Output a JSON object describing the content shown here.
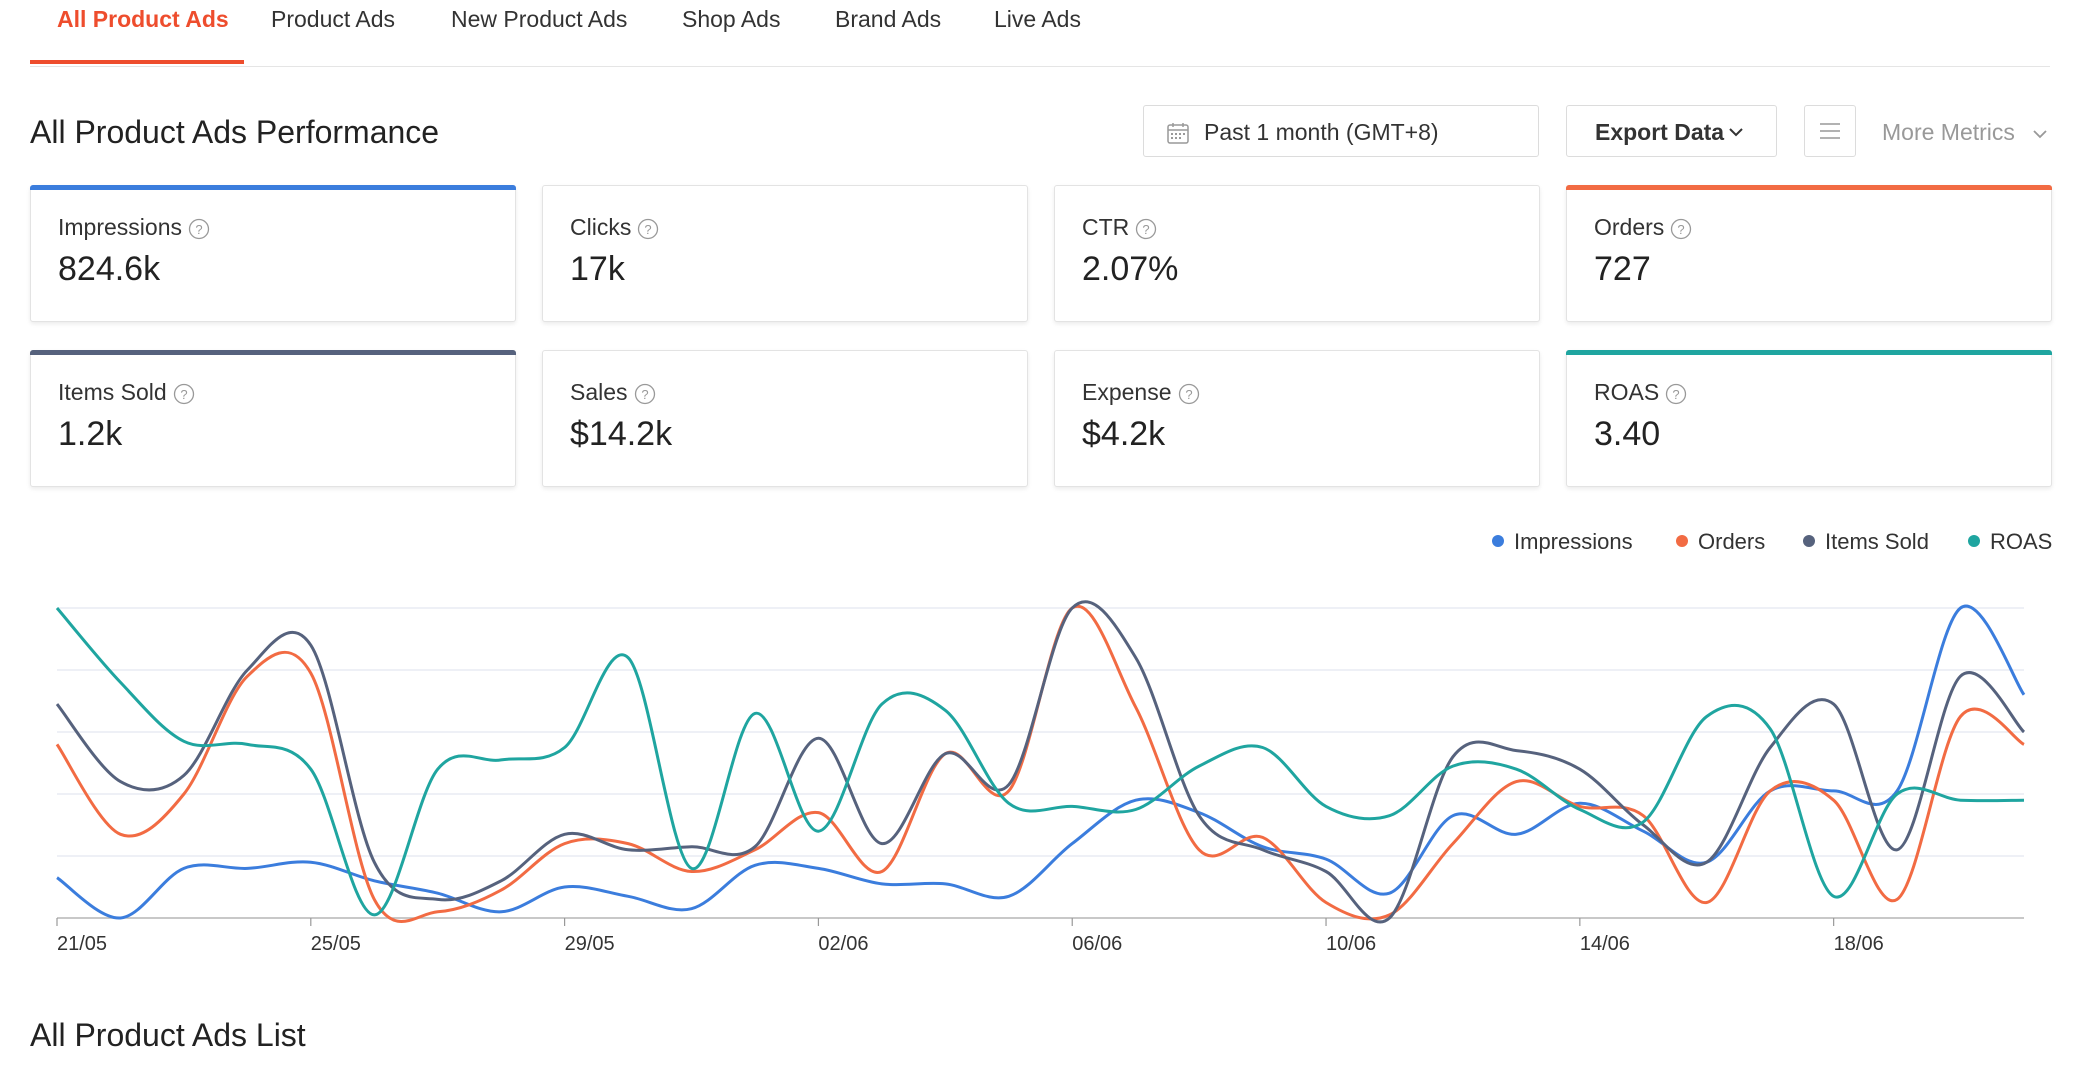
{
  "tabs": [
    {
      "label": "All Product Ads",
      "active": true
    },
    {
      "label": "Product Ads",
      "active": false
    },
    {
      "label": "New Product Ads",
      "active": false
    },
    {
      "label": "Shop Ads",
      "active": false
    },
    {
      "label": "Brand Ads",
      "active": false
    },
    {
      "label": "Live Ads",
      "active": false
    }
  ],
  "performance": {
    "title": "All Product Ads Performance",
    "date_range": "Past 1 month (GMT+8)",
    "export_label": "Export Data",
    "more_metrics_label": "More Metrics"
  },
  "metrics": [
    {
      "label": "Impressions",
      "value": "824.6k",
      "selected": true,
      "color": "#3b7ddd"
    },
    {
      "label": "Clicks",
      "value": "17k",
      "selected": false
    },
    {
      "label": "CTR",
      "value": "2.07%",
      "selected": false
    },
    {
      "label": "Orders",
      "value": "727",
      "selected": true,
      "color": "#f26b43"
    },
    {
      "label": "Items Sold",
      "value": "1.2k",
      "selected": true,
      "color": "#56627d"
    },
    {
      "label": "Sales",
      "value": "$14.2k",
      "selected": false
    },
    {
      "label": "Expense",
      "value": "$4.2k",
      "selected": false
    },
    {
      "label": "ROAS",
      "value": "3.40",
      "selected": true,
      "color": "#1fa5a0"
    }
  ],
  "legend": [
    {
      "name": "Impressions",
      "color": "#3b7ddd"
    },
    {
      "name": "Orders",
      "color": "#f26b43"
    },
    {
      "name": "Items Sold",
      "color": "#56627d"
    },
    {
      "name": "ROAS",
      "color": "#1fa5a0"
    }
  ],
  "list_title": "All Product Ads List",
  "colors": {
    "accent": "#ee4d2d",
    "grid": "#e4e8f0",
    "axis": "#999999"
  },
  "chart_data": {
    "type": "line",
    "x": [
      "21/05",
      "22/05",
      "23/05",
      "24/05",
      "25/05",
      "26/05",
      "27/05",
      "28/05",
      "29/05",
      "30/05",
      "31/05",
      "01/06",
      "02/06",
      "03/06",
      "04/06",
      "05/06",
      "06/06",
      "07/06",
      "08/06",
      "09/06",
      "10/06",
      "11/06",
      "12/06",
      "13/06",
      "14/06",
      "15/06",
      "16/06",
      "17/06",
      "18/06",
      "19/06",
      "20/06",
      "21/06"
    ],
    "xticks": [
      "21/05",
      "25/05",
      "29/05",
      "02/06",
      "06/06",
      "10/06",
      "14/06",
      "18/06"
    ],
    "grid": true,
    "normalized": true,
    "ylim": [
      0,
      1
    ],
    "series": [
      {
        "name": "Impressions",
        "color": "#3b7ddd",
        "values": [
          0.13,
          0.0,
          0.16,
          0.16,
          0.18,
          0.12,
          0.08,
          0.02,
          0.1,
          0.07,
          0.03,
          0.17,
          0.16,
          0.11,
          0.11,
          0.07,
          0.24,
          0.38,
          0.34,
          0.23,
          0.19,
          0.08,
          0.33,
          0.27,
          0.37,
          0.28,
          0.18,
          0.41,
          0.41,
          0.41,
          1.0,
          0.72
        ]
      },
      {
        "name": "Orders",
        "color": "#f26b43",
        "values": [
          0.56,
          0.27,
          0.4,
          0.78,
          0.79,
          0.06,
          0.02,
          0.09,
          0.24,
          0.24,
          0.15,
          0.22,
          0.34,
          0.15,
          0.53,
          0.41,
          1.0,
          0.68,
          0.22,
          0.26,
          0.05,
          0.01,
          0.24,
          0.44,
          0.36,
          0.33,
          0.05,
          0.41,
          0.38,
          0.06,
          0.65,
          0.56
        ]
      },
      {
        "name": "Items Sold",
        "color": "#56627d",
        "values": [
          0.69,
          0.44,
          0.46,
          0.8,
          0.88,
          0.18,
          0.06,
          0.12,
          0.27,
          0.22,
          0.23,
          0.23,
          0.58,
          0.24,
          0.53,
          0.43,
          1.0,
          0.84,
          0.33,
          0.22,
          0.15,
          0.0,
          0.52,
          0.54,
          0.48,
          0.3,
          0.18,
          0.55,
          0.69,
          0.22,
          0.78,
          0.6
        ]
      },
      {
        "name": "ROAS",
        "color": "#1fa5a0",
        "values": [
          1.0,
          0.76,
          0.57,
          0.56,
          0.48,
          0.01,
          0.48,
          0.51,
          0.55,
          0.84,
          0.16,
          0.66,
          0.28,
          0.69,
          0.67,
          0.37,
          0.36,
          0.35,
          0.49,
          0.55,
          0.36,
          0.33,
          0.49,
          0.48,
          0.35,
          0.31,
          0.65,
          0.61,
          0.07,
          0.4,
          0.38,
          0.38
        ]
      }
    ]
  }
}
